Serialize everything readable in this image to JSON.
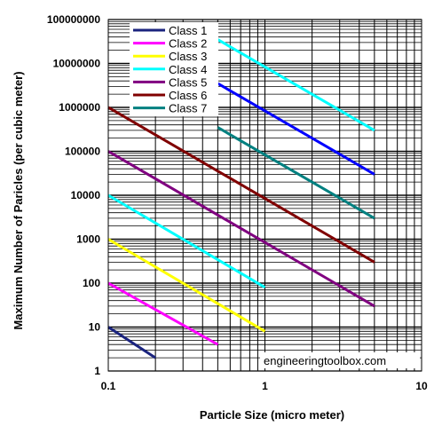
{
  "chart_data": {
    "type": "line",
    "xlabel": "Particle Size (micro meter)",
    "ylabel": "Maximum Number of Paricles (per cubic meter)",
    "x_scale": "log",
    "y_scale": "log",
    "xlim": [
      0.1,
      10
    ],
    "ylim": [
      1,
      100000000
    ],
    "x_ticks": [
      "0.1",
      "1",
      "10"
    ],
    "y_ticks": [
      "1",
      "10",
      "100",
      "1000",
      "10000",
      "100000",
      "1000000",
      "10000000",
      "100000000"
    ],
    "grid": true,
    "legend_position": "top-left",
    "series": [
      {
        "name": "Class 1",
        "color": "#1a237e",
        "x": [
          0.1,
          0.2
        ],
        "y": [
          10,
          2
        ]
      },
      {
        "name": "Class 2",
        "color": "#ff00ff",
        "x": [
          0.1,
          0.5
        ],
        "y": [
          100,
          4
        ]
      },
      {
        "name": "Class 3",
        "color": "#ffff00",
        "x": [
          0.1,
          1
        ],
        "y": [
          1000,
          8
        ]
      },
      {
        "name": "Class 4",
        "color": "#00ffff",
        "x": [
          0.1,
          1
        ],
        "y": [
          10000,
          80
        ]
      },
      {
        "name": "Class 4",
        "color": "#00ffff",
        "x": [
          0.5,
          5
        ],
        "y": [
          35000000,
          300000
        ]
      },
      {
        "name": "Class 5",
        "color": "#800080",
        "x": [
          0.1,
          5
        ],
        "y": [
          100000,
          30
        ]
      },
      {
        "name": "Class 6",
        "color": "#800000",
        "x": [
          0.1,
          5
        ],
        "y": [
          1000000,
          300
        ]
      },
      {
        "name": "Class 7",
        "color": "#008080",
        "x": [
          0.5,
          5
        ],
        "y": [
          350000,
          3000
        ]
      },
      {
        "name": "Class 1",
        "color": "#0000ff",
        "x": [
          0.5,
          5
        ],
        "y": [
          3500000,
          30000
        ]
      }
    ],
    "legend": [
      {
        "label": "Class 1",
        "color": "#1a237e"
      },
      {
        "label": "Class 2",
        "color": "#ff00ff"
      },
      {
        "label": "Class 3",
        "color": "#ffff00"
      },
      {
        "label": "Class 4",
        "color": "#00ffff"
      },
      {
        "label": "Class 5",
        "color": "#800080"
      },
      {
        "label": "Class 6",
        "color": "#800000"
      },
      {
        "label": "Class 7",
        "color": "#008080"
      }
    ],
    "watermark": "engineeringtoolbox.com"
  }
}
